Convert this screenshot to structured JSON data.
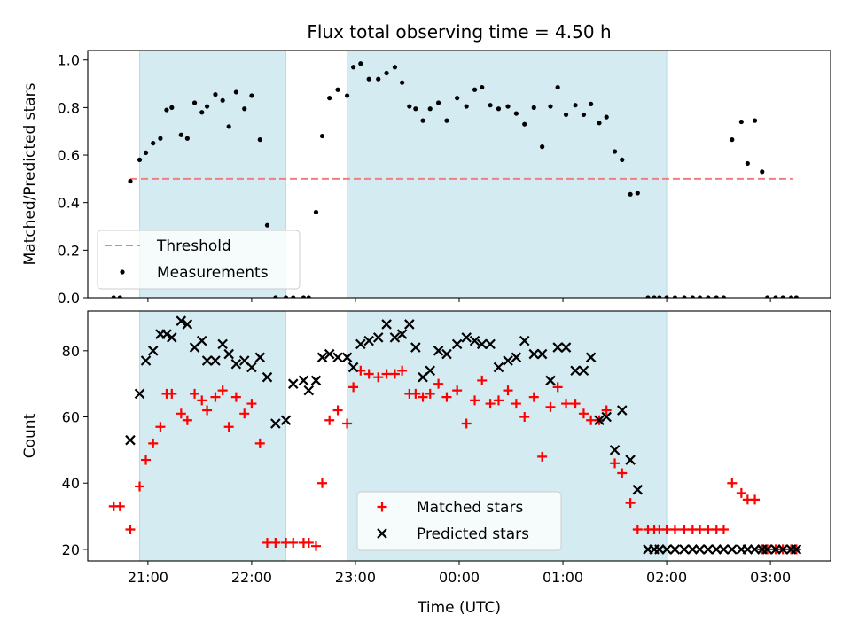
{
  "chart_data": {
    "type": "scatter",
    "title": "Flux total observing time = 4.50 h",
    "xlabel": "Time (UTC)",
    "x_unit": "hours, continuing past midnight (24.5 = 00:30)",
    "x_ticks": [
      {
        "value": 21,
        "label": "21:00"
      },
      {
        "value": 22,
        "label": "22:00"
      },
      {
        "value": 23,
        "label": "23:00"
      },
      {
        "value": 24,
        "label": "00:00"
      },
      {
        "value": 25,
        "label": "01:00"
      },
      {
        "value": 26,
        "label": "02:00"
      },
      {
        "value": 27,
        "label": "03:00"
      }
    ],
    "xlim": [
      20.42,
      27.58
    ],
    "shaded_intervals": [
      [
        20.92,
        22.33
      ],
      [
        22.92,
        26.0
      ]
    ],
    "shade_color": "#d3ebf1",
    "panels": [
      {
        "ylabel": "Matched/Predicted stars",
        "ylim": [
          0,
          1.04
        ],
        "y_ticks": [
          0.0,
          0.2,
          0.4,
          0.6,
          0.8,
          1.0
        ],
        "y_tick_labels": [
          "0.0",
          "0.2",
          "0.4",
          "0.6",
          "0.8",
          "1.0"
        ],
        "legend_position": "lower-left",
        "series": [
          {
            "name": "Threshold",
            "kind": "dashed-line",
            "color": "#f08080",
            "x": [
              20.83,
              27.22
            ],
            "y": [
              0.5,
              0.5
            ]
          },
          {
            "name": "Measurements",
            "kind": "dot",
            "color": "#000000",
            "x": [
              20.67,
              20.73,
              20.83,
              20.92,
              20.98,
              21.05,
              21.12,
              21.18,
              21.23,
              21.32,
              21.38,
              21.45,
              21.52,
              21.57,
              21.65,
              21.72,
              21.78,
              21.85,
              21.93,
              22.0,
              22.08,
              22.15,
              22.23,
              22.33,
              22.4,
              22.5,
              22.55,
              22.62,
              22.68,
              22.75,
              22.83,
              22.92,
              22.98,
              23.05,
              23.13,
              23.22,
              23.3,
              23.38,
              23.45,
              23.52,
              23.58,
              23.65,
              23.72,
              23.8,
              23.88,
              23.98,
              24.07,
              24.15,
              24.22,
              24.3,
              24.38,
              24.47,
              24.55,
              24.63,
              24.72,
              24.8,
              24.88,
              24.95,
              25.03,
              25.12,
              25.2,
              25.27,
              25.35,
              25.42,
              25.5,
              25.57,
              25.65,
              25.72,
              25.82,
              25.88,
              25.93,
              26.0,
              26.08,
              26.17,
              26.25,
              26.32,
              26.4,
              26.48,
              26.55,
              26.63,
              26.72,
              26.78,
              26.85,
              26.92,
              26.97,
              27.05,
              27.12,
              27.2,
              27.25
            ],
            "y": [
              0.0,
              0.0,
              0.49,
              0.58,
              0.61,
              0.65,
              0.67,
              0.79,
              0.8,
              0.685,
              0.67,
              0.82,
              0.78,
              0.805,
              0.855,
              0.83,
              0.72,
              0.865,
              0.795,
              0.85,
              0.665,
              0.305,
              0.0,
              0.0,
              0.0,
              0.0,
              0.0,
              0.36,
              0.68,
              0.84,
              0.875,
              0.85,
              0.97,
              0.985,
              0.92,
              0.92,
              0.945,
              0.97,
              0.905,
              0.805,
              0.795,
              0.745,
              0.795,
              0.82,
              0.745,
              0.84,
              0.805,
              0.875,
              0.885,
              0.81,
              0.795,
              0.805,
              0.775,
              0.73,
              0.8,
              0.635,
              0.805,
              0.885,
              0.77,
              0.81,
              0.77,
              0.815,
              0.735,
              0.76,
              0.615,
              0.58,
              0.435,
              0.44,
              0.0,
              0.0,
              0.0,
              0.0,
              0.0,
              0.0,
              0.0,
              0.0,
              0.0,
              0.0,
              0.0,
              0.665,
              0.74,
              0.565,
              0.745,
              0.53,
              0.0,
              0.0,
              0.0,
              0.0,
              0.0
            ]
          }
        ]
      },
      {
        "ylabel": "Count",
        "ylim": [
          16.5,
          92
        ],
        "y_ticks": [
          20,
          40,
          60,
          80
        ],
        "y_tick_labels": [
          "20",
          "40",
          "60",
          "80"
        ],
        "legend_position": "lower-center",
        "series": [
          {
            "name": "Matched stars",
            "kind": "plus",
            "color": "#ff0000",
            "x": [
              20.67,
              20.73,
              20.83,
              20.92,
              20.98,
              21.05,
              21.12,
              21.18,
              21.23,
              21.32,
              21.38,
              21.45,
              21.52,
              21.57,
              21.65,
              21.72,
              21.78,
              21.85,
              21.93,
              22.0,
              22.08,
              22.15,
              22.23,
              22.33,
              22.4,
              22.5,
              22.55,
              22.62,
              22.68,
              22.75,
              22.83,
              22.92,
              22.98,
              23.05,
              23.13,
              23.22,
              23.3,
              23.38,
              23.45,
              23.52,
              23.58,
              23.65,
              23.72,
              23.8,
              23.88,
              23.98,
              24.07,
              24.15,
              24.22,
              24.3,
              24.38,
              24.47,
              24.55,
              24.63,
              24.72,
              24.8,
              24.88,
              24.95,
              25.03,
              25.12,
              25.2,
              25.27,
              25.35,
              25.42,
              25.5,
              25.57,
              25.65,
              25.72,
              25.82,
              25.88,
              25.93,
              26.0,
              26.08,
              26.17,
              26.25,
              26.32,
              26.4,
              26.48,
              26.55,
              26.63,
              26.72,
              26.78,
              26.85,
              26.92,
              26.97,
              27.05,
              27.12,
              27.2,
              27.25
            ],
            "y": [
              33,
              33,
              26,
              39,
              47,
              52,
              57,
              67,
              67,
              61,
              59,
              67,
              65,
              62,
              66,
              68,
              57,
              66,
              61,
              64,
              52,
              22,
              22,
              22,
              22,
              22,
              22,
              21,
              40,
              59,
              62,
              58,
              69,
              74,
              73,
              72,
              73,
              73,
              74,
              67,
              67,
              66,
              67,
              70,
              66,
              68,
              58,
              65,
              71,
              64,
              65,
              68,
              64,
              60,
              66,
              48,
              63,
              69,
              64,
              64,
              61,
              59,
              59,
              62,
              46,
              43,
              34,
              26,
              26,
              26,
              26,
              26,
              26,
              26,
              26,
              26,
              26,
              26,
              26,
              40,
              37,
              35,
              35,
              20,
              20,
              20,
              20,
              20,
              20
            ]
          },
          {
            "name": "Predicted stars",
            "kind": "x",
            "color": "#000000",
            "x": [
              20.83,
              20.92,
              20.98,
              21.05,
              21.12,
              21.18,
              21.23,
              21.32,
              21.38,
              21.45,
              21.52,
              21.57,
              21.65,
              21.72,
              21.78,
              21.85,
              21.93,
              22.0,
              22.08,
              22.15,
              22.23,
              22.33,
              22.4,
              22.5,
              22.55,
              22.62,
              22.68,
              22.75,
              22.83,
              22.92,
              22.98,
              23.05,
              23.13,
              23.22,
              23.3,
              23.38,
              23.45,
              23.52,
              23.58,
              23.65,
              23.72,
              23.8,
              23.88,
              23.98,
              24.07,
              24.15,
              24.22,
              24.3,
              24.38,
              24.47,
              24.55,
              24.63,
              24.72,
              24.8,
              24.88,
              24.95,
              25.03,
              25.12,
              25.2,
              25.27,
              25.35,
              25.42,
              25.5,
              25.57,
              25.65,
              25.72,
              25.82,
              25.88,
              25.93,
              26.0,
              26.08,
              26.17,
              26.25,
              26.32,
              26.4,
              26.48,
              26.55,
              26.63,
              26.72,
              26.78,
              26.85,
              26.92,
              26.97,
              27.05,
              27.12,
              27.2,
              27.25
            ],
            "y": [
              53,
              67,
              77,
              80,
              85,
              85,
              84,
              89,
              88,
              81,
              83,
              77,
              77,
              82,
              79,
              76,
              77,
              75,
              78,
              72,
              58,
              59,
              70,
              71,
              68,
              71,
              78,
              79,
              78,
              78,
              75,
              82,
              83,
              84,
              88,
              84,
              85,
              88,
              81,
              72,
              74,
              80,
              79,
              82,
              84,
              83,
              82,
              82,
              75,
              77,
              78,
              83,
              79,
              79,
              71,
              81,
              81,
              74,
              74,
              78,
              59,
              60,
              50,
              62,
              47,
              38,
              20,
              20,
              20,
              20,
              20,
              20,
              20,
              20,
              20,
              20,
              20,
              20,
              20,
              20,
              20,
              20,
              20,
              20,
              20,
              20,
              20
            ]
          }
        ]
      }
    ]
  }
}
